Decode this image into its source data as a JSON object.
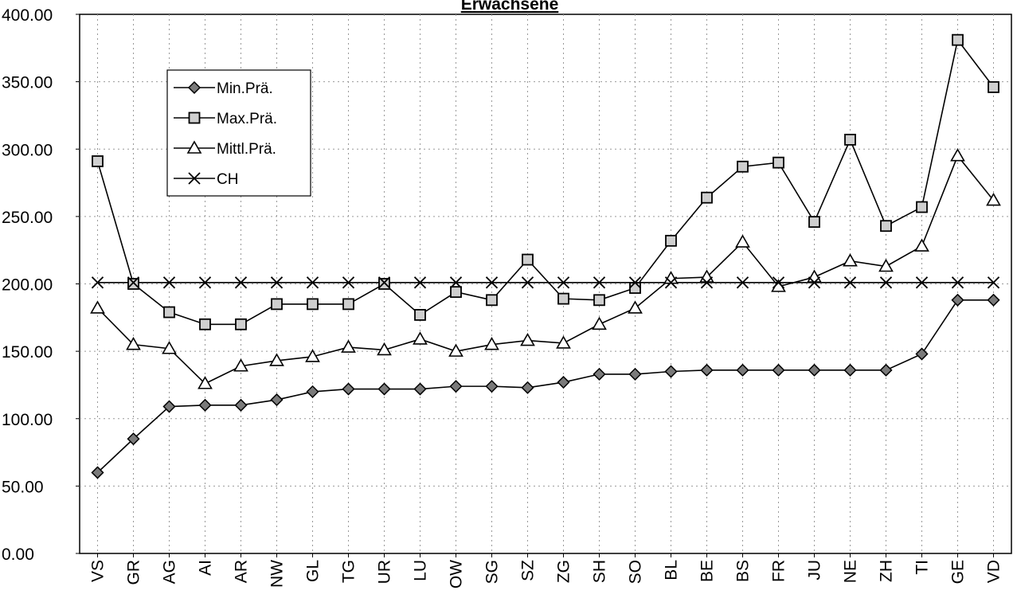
{
  "chart_data": {
    "type": "line",
    "title": "Erwachsene",
    "xlabel": "",
    "ylabel": "",
    "ylim": [
      0,
      400
    ],
    "yticks": [
      "0.00",
      "50.00",
      "100.00",
      "150.00",
      "200.00",
      "250.00",
      "300.00",
      "350.00",
      "400.00"
    ],
    "grid": true,
    "legend_position": "top-left",
    "categories": [
      "VS",
      "GR",
      "AG",
      "AI",
      "AR",
      "NW",
      "GL",
      "TG",
      "UR",
      "LU",
      "OW",
      "SG",
      "SZ",
      "ZG",
      "SH",
      "SO",
      "BL",
      "BE",
      "BS",
      "FR",
      "JU",
      "NE",
      "ZH",
      "TI",
      "GE",
      "VD"
    ],
    "series": [
      {
        "name": "Min.Prä.",
        "marker": "diamond",
        "values": [
          60,
          85,
          109,
          110,
          110,
          114,
          120,
          122,
          122,
          122,
          124,
          124,
          123,
          127,
          133,
          133,
          135,
          136,
          136,
          136,
          136,
          136,
          136,
          148,
          188,
          188
        ]
      },
      {
        "name": "Max.Prä.",
        "marker": "square",
        "values": [
          291,
          200,
          179,
          170,
          170,
          185,
          185,
          185,
          200,
          177,
          194,
          188,
          218,
          189,
          188,
          197,
          232,
          264,
          287,
          290,
          246,
          307,
          243,
          257,
          381,
          346
        ]
      },
      {
        "name": "Mittl.Prä.",
        "marker": "triangle",
        "values": [
          182,
          155,
          152,
          126,
          139,
          143,
          146,
          153,
          151,
          159,
          150,
          155,
          158,
          156,
          170,
          182,
          204,
          205,
          231,
          198,
          205,
          217,
          213,
          228,
          295,
          262
        ]
      },
      {
        "name": "CH",
        "marker": "x",
        "values": [
          201,
          201,
          201,
          201,
          201,
          201,
          201,
          201,
          201,
          201,
          201,
          201,
          201,
          201,
          201,
          201,
          201,
          201,
          201,
          201,
          201,
          201,
          201,
          201,
          201,
          201
        ]
      }
    ]
  }
}
